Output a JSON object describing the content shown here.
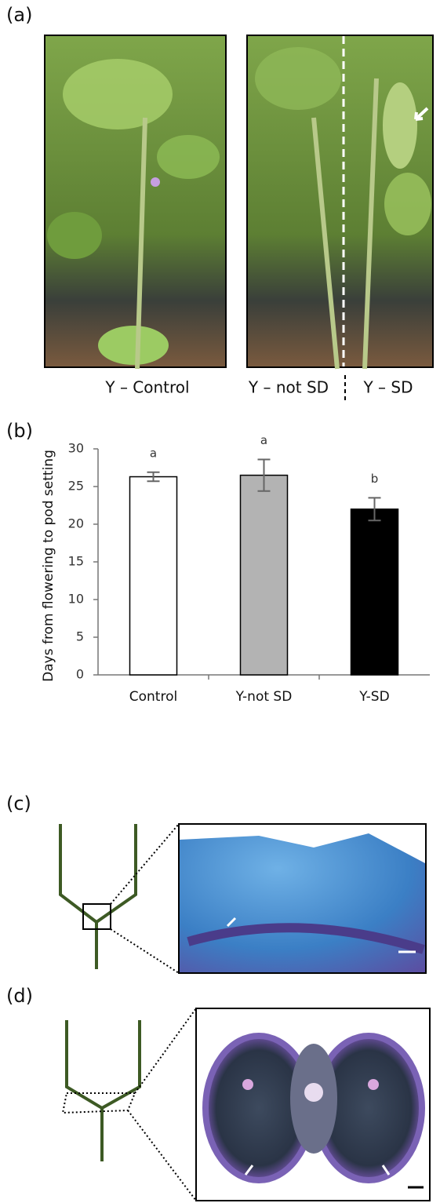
{
  "panels": [
    {
      "label": "(a)",
      "captions": [
        "Y – Control",
        "Y – not SD",
        "Y – SD"
      ]
    },
    {
      "label": "(b)"
    },
    {
      "label": "(c)"
    },
    {
      "label": "(d)"
    }
  ],
  "chart_data": {
    "type": "bar",
    "y_label": "Days from flowering to pod setting",
    "categories": [
      "Control",
      "Y-not SD",
      "Y-SD"
    ],
    "values": [
      26.3,
      26.5,
      22.0
    ],
    "errors": [
      0.6,
      2.1,
      1.5
    ],
    "annotations": [
      "a",
      "a",
      "b"
    ],
    "colors": [
      "#ffffff",
      "#b3b3b3",
      "#000000"
    ],
    "ylim": [
      0,
      30
    ],
    "yticks": [
      0,
      5,
      10,
      15,
      20,
      25,
      30
    ]
  }
}
